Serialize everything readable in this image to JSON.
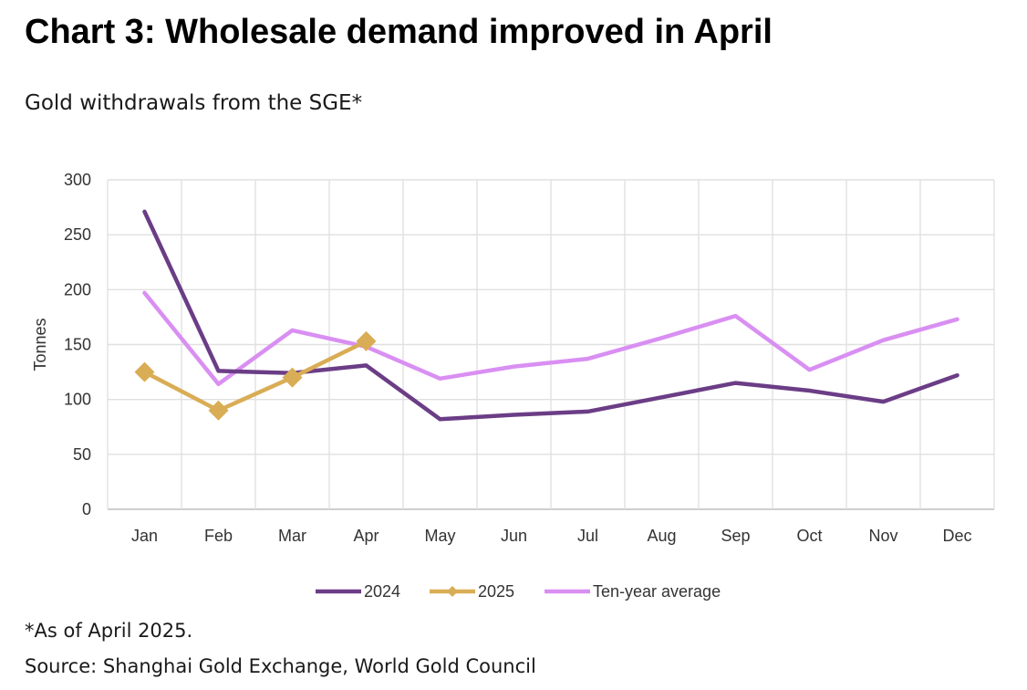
{
  "title": "Chart 3: Wholesale demand improved in April",
  "subtitle": "Gold withdrawals from the SGE*",
  "footnote": "*As of April 2025.",
  "source": "Source: Shanghai Gold Exchange, World Gold Council",
  "chart_data": {
    "type": "line",
    "title": "Chart 3: Wholesale demand improved in April",
    "subtitle": "Gold withdrawals from the SGE*",
    "xlabel": "",
    "ylabel": "Tonnes",
    "ylim": [
      0,
      300
    ],
    "yticks": [
      0,
      50,
      100,
      150,
      200,
      250,
      300
    ],
    "grid": true,
    "legend_position": "bottom",
    "categories": [
      "Jan",
      "Feb",
      "Mar",
      "Apr",
      "May",
      "Jun",
      "Jul",
      "Aug",
      "Sep",
      "Oct",
      "Nov",
      "Dec"
    ],
    "series": [
      {
        "name": "2024",
        "color": "#6b3d86",
        "marker": "none",
        "values": [
          271,
          126,
          124,
          131,
          82,
          86,
          89,
          102,
          115,
          108,
          98,
          122
        ]
      },
      {
        "name": "2025",
        "color": "#d9ad55",
        "marker": "diamond",
        "values": [
          125,
          90,
          120,
          153,
          null,
          null,
          null,
          null,
          null,
          null,
          null,
          null
        ]
      },
      {
        "name": "Ten-year average",
        "color": "#d98ff2",
        "marker": "none",
        "values": [
          197,
          114,
          163,
          148,
          119,
          130,
          137,
          156,
          176,
          127,
          154,
          173
        ]
      }
    ]
  }
}
